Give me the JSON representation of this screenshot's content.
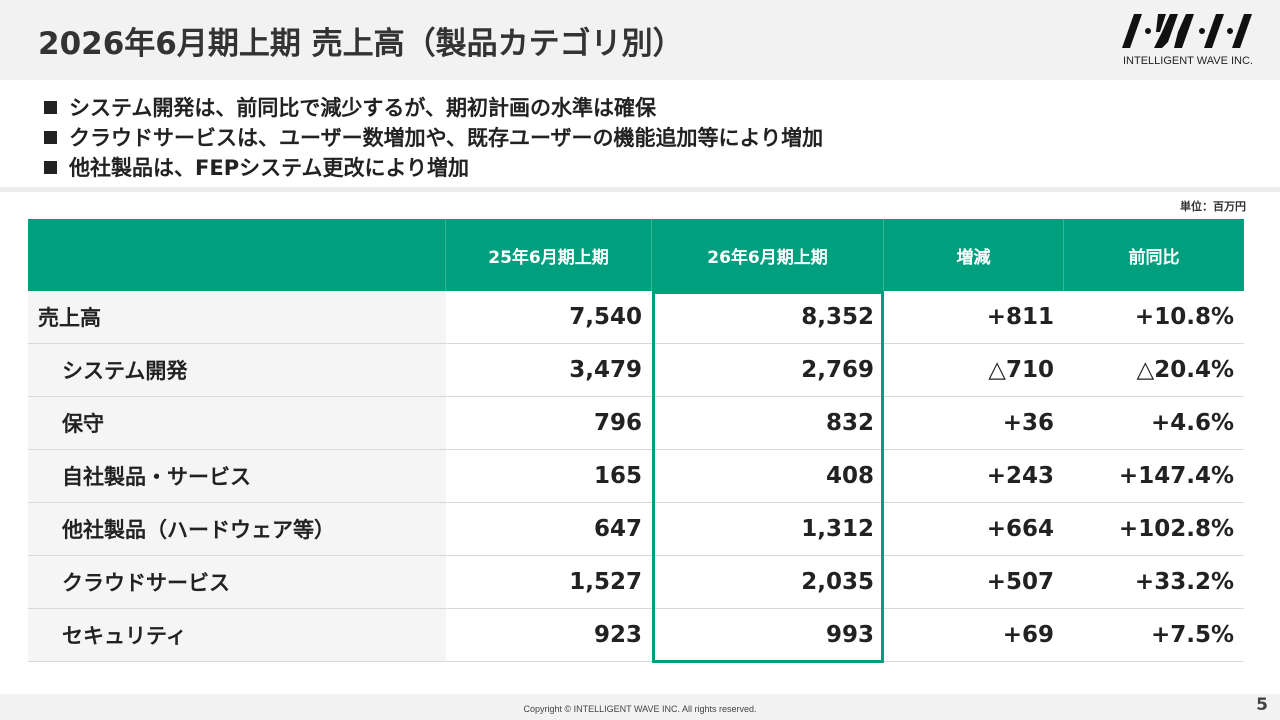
{
  "header": {
    "title": "2026年6月期上期 売上高（製品カテゴリ別）",
    "logo_text": "INTELLIGENT WAVE INC.",
    "logo_color": "#111111"
  },
  "bullets": [
    "システム開発は、前同比で減少するが、期初計画の水準は確保",
    "クラウドサービスは、ユーザー数増加や、既存ユーザーの機能追加等により増加",
    "他社製品は、FEPシステム更改により増加"
  ],
  "unit_label": "単位：百万円",
  "table": {
    "accent_color": "#00a07e",
    "columns": [
      "",
      "25年6月期上期",
      "26年6月期上期",
      "増減",
      "前同比"
    ],
    "rows": [
      {
        "label": "売上高",
        "prev": "7,540",
        "curr": "8,352",
        "diff": "+811",
        "ratio": "+10.8%"
      },
      {
        "label": "システム開発",
        "prev": "3,479",
        "curr": "2,769",
        "diff": "△710",
        "ratio": "△20.4%"
      },
      {
        "label": "保守",
        "prev": "796",
        "curr": "832",
        "diff": "+36",
        "ratio": "+4.6%"
      },
      {
        "label": "自社製品・サービス",
        "prev": "165",
        "curr": "408",
        "diff": "+243",
        "ratio": "+147.4%"
      },
      {
        "label": "他社製品（ハードウェア等）",
        "prev": "647",
        "curr": "1,312",
        "diff": "+664",
        "ratio": "+102.8%"
      },
      {
        "label": "クラウドサービス",
        "prev": "1,527",
        "curr": "2,035",
        "diff": "+507",
        "ratio": "+33.2%"
      },
      {
        "label": "セキュリティ",
        "prev": "923",
        "curr": "993",
        "diff": "+69",
        "ratio": "+7.5%"
      }
    ]
  },
  "footer": {
    "copyright": "Copyright © INTELLIGENT WAVE INC. All rights reserved.",
    "page_number": "5"
  }
}
